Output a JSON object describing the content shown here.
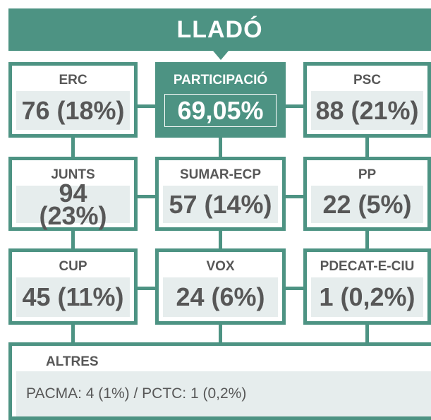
{
  "title": "LLADÓ",
  "turnout": {
    "label": "PARTICIPACIÓ",
    "value": "69,05%"
  },
  "parties": [
    {
      "name": "ERC",
      "result": "76 (18%)"
    },
    {
      "name": "PSC",
      "result": "88 (21%)"
    },
    {
      "name": "JUNTS",
      "result": "94 (23%)"
    },
    {
      "name": "SUMAR-ECP",
      "result": "57 (14%)"
    },
    {
      "name": "PP",
      "result": "22 (5%)"
    },
    {
      "name": "CUP",
      "result": "45 (11%)"
    },
    {
      "name": "VOX",
      "result": "24 (6%)"
    },
    {
      "name": "PDECAT-E-CIU",
      "result": "1 (0,2%)"
    }
  ],
  "others": {
    "label": "ALTRES",
    "text": "PACMA: 4 (1%) / PCTC: 1 (0,2%)"
  }
}
